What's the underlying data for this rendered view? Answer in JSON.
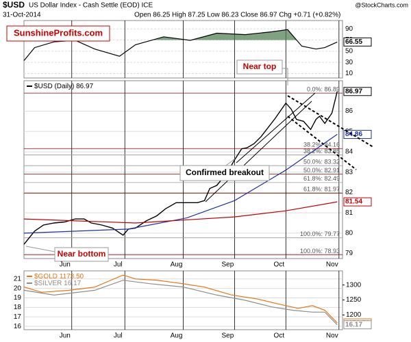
{
  "header": {
    "symbol": "$USD",
    "description": "US Dollar Index - Cash Settle (EOD) ICE",
    "date": "31-Oct-2014",
    "quote": "Open 86.25 High 87.25 Low 86.23 Close 86.97 Chg +0.71 (+0.82%)",
    "watermark": "@StockCharts.com"
  },
  "annotations": [
    "SunshineProfits.com",
    "Near top",
    "Confirmed breakout",
    "Near bottom"
  ],
  "chart_data": [
    {
      "type": "line",
      "xlim": [
        0,
        180
      ],
      "ylim": [
        2,
        105
      ],
      "yticks": [
        10,
        30,
        50,
        70,
        90
      ],
      "fill_above": 70,
      "fill_color": "#4a7a4a",
      "series": [
        {
          "color": "#000000",
          "x": [
            0,
            6,
            17,
            29,
            40,
            54,
            63,
            79,
            94,
            109,
            125,
            140,
            149,
            157,
            165,
            170,
            177
          ],
          "values": [
            33.2,
            56.5,
            66.8,
            69.4,
            53.9,
            41,
            61.6,
            75.8,
            69.4,
            82.3,
            79.7,
            84.8,
            88.7,
            59,
            53.9,
            56.5,
            66.55
          ]
        }
      ]
    },
    {
      "type": "line",
      "xlim": [
        0,
        180
      ],
      "xticks": [
        {
          "value": 27,
          "label": "Jun"
        },
        {
          "value": 57,
          "label": "Jul"
        },
        {
          "value": 90,
          "label": "Aug"
        },
        {
          "value": 119,
          "label": "Sep"
        },
        {
          "value": 148,
          "label": "Oct"
        },
        {
          "value": 178,
          "label": "Nov"
        }
      ],
      "ylim": [
        78.75,
        87.5
      ],
      "yticks": [
        79,
        80,
        81,
        82,
        83,
        84,
        85,
        86
      ],
      "series": [
        {
          "name": "$USD (Daily)",
          "color": "#000000",
          "x": [
            0,
            6,
            11,
            17,
            23,
            29,
            34,
            38,
            44,
            50,
            56,
            59,
            63,
            69,
            75,
            80,
            86,
            92,
            98,
            102,
            105,
            109,
            115,
            119,
            123,
            126,
            130,
            134,
            138,
            142,
            144,
            148,
            151,
            154,
            158,
            162,
            165,
            167,
            170,
            174,
            177
          ],
          "values": [
            79.45,
            80.1,
            80.4,
            80.5,
            80.55,
            80.7,
            80.7,
            80.5,
            80.4,
            80.25,
            79.9,
            80.2,
            80.25,
            80.6,
            80.85,
            81.2,
            81.5,
            81.5,
            81.5,
            81.6,
            82.2,
            82.35,
            83,
            83.6,
            84.15,
            84.2,
            84.4,
            84.75,
            85.2,
            85.65,
            85.9,
            86.4,
            86.1,
            85.6,
            85.5,
            85.1,
            85.6,
            85.75,
            85.4,
            85.9,
            86.97
          ]
        },
        {
          "color": "#1f2f9f",
          "x": [
            0,
            59,
            92,
            119,
            148,
            177
          ],
          "values": [
            80,
            80.2,
            80.75,
            81.6,
            83.1,
            84.86
          ]
        },
        {
          "color": "#c00000",
          "x": [
            0,
            63,
            119,
            148,
            177
          ],
          "values": [
            80.7,
            80.5,
            80.8,
            81.1,
            81.54
          ]
        }
      ],
      "levels": [
        {
          "label": "0.0%: 86.89",
          "value": 86.89,
          "color": "#8b0000"
        },
        {
          "label": "38.2%: 84.16",
          "value": 84.16,
          "color": "#8b0000"
        },
        {
          "label": "38.2%: 83.85",
          "value": 83.85,
          "color": "#999999"
        },
        {
          "label": "50.0%: 83.32",
          "value": 83.32,
          "color": "#999999"
        },
        {
          "label": "50.0%: 82.91",
          "value": 82.91,
          "color": "#8b0000"
        },
        {
          "label": "61.8%: 82.49",
          "value": 82.49,
          "color": "#999999"
        },
        {
          "label": "61.8%: 81.97",
          "value": 81.97,
          "color": "#8b0000"
        },
        {
          "label": "100.0%: 79.77",
          "value": 79.77,
          "color": "#999999"
        },
        {
          "label": "100.0%: 78.93",
          "value": 78.93,
          "color": "#8b0000"
        }
      ]
    },
    {
      "type": "line",
      "xlim": [
        0,
        180
      ],
      "xticks": [
        {
          "value": 27,
          "label": "Jun"
        },
        {
          "value": 57,
          "label": "Jul"
        },
        {
          "value": 90,
          "label": "Aug"
        },
        {
          "value": 119,
          "label": "Sep"
        },
        {
          "value": 148,
          "label": "Oct"
        },
        {
          "value": 178,
          "label": "Nov"
        }
      ],
      "ylim": [
        15.65,
        21.85
      ],
      "yticks": [
        16,
        17,
        18,
        19,
        20,
        21
      ],
      "y2lim": [
        1151,
        1347
      ],
      "y2ticks": [
        1200,
        1250,
        1300
      ],
      "series": [
        {
          "name": "$GOLD",
          "last_label": "1173.50",
          "color": "#e87511",
          "axis": "y2",
          "x": [
            0,
            10,
            25,
            40,
            56,
            63,
            75,
            90,
            102,
            117,
            132,
            148,
            155,
            163,
            170,
            177
          ],
          "values": [
            1293.3,
            1275.6,
            1282,
            1293,
            1333,
            1320,
            1316,
            1304,
            1293,
            1267,
            1253,
            1231,
            1222,
            1231,
            1216,
            1173.5
          ]
        },
        {
          "name": "$SILVER",
          "color": "#8c8c8c",
          "x": [
            0,
            17,
            40,
            56,
            71,
            90,
            109,
            125,
            140,
            152,
            163,
            170,
            177
          ],
          "values": [
            19.8,
            19.3,
            19.8,
            20.86,
            20.5,
            20.15,
            19.3,
            18.75,
            18.05,
            17.7,
            17.5,
            17.5,
            16.17
          ]
        }
      ]
    }
  ]
}
